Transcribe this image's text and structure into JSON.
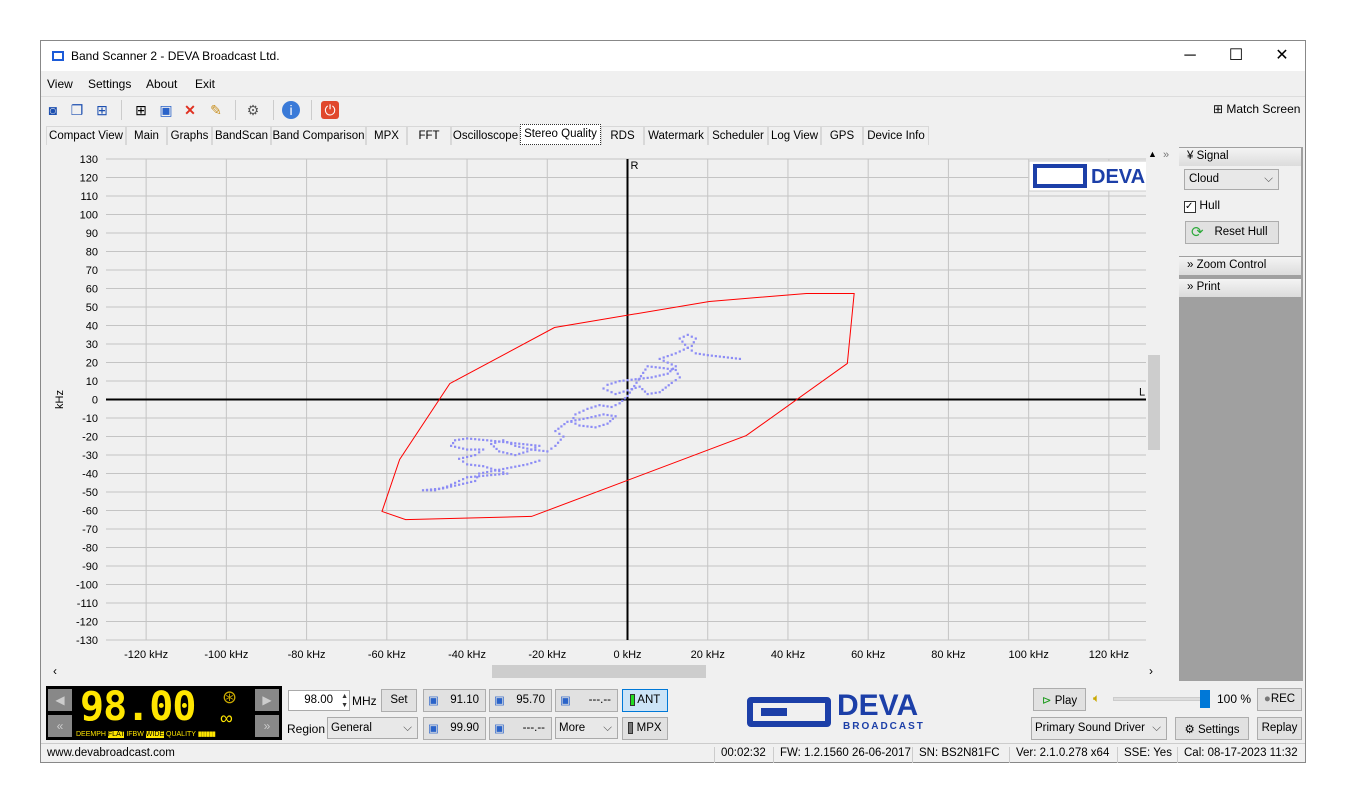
{
  "window": {
    "title": "Band Scanner 2 - DEVA Broadcast Ltd.",
    "minimize": "─",
    "maximize": "☐",
    "close": "✕"
  },
  "menu": [
    "View",
    "Settings",
    "About",
    "Exit"
  ],
  "toolbar": {
    "match_screen": "Match Screen",
    "icons": [
      "view-icon",
      "windows-icon",
      "grid-icon",
      "layout-icon",
      "save-icon",
      "delete-icon",
      "edit-icon",
      "gear-icon",
      "info-icon",
      "power-icon"
    ]
  },
  "tabs": [
    "Compact View",
    "Main",
    "Graphs",
    "BandScan",
    "Band Comparison",
    "MPX",
    "FFT",
    "Oscilloscope",
    "Stereo Quality",
    "RDS",
    "Watermark",
    "Scheduler",
    "Log View",
    "GPS",
    "Device Info"
  ],
  "active_tab": "Stereo Quality",
  "chart_data": {
    "type": "scatter",
    "xlabel": "",
    "ylabel": "kHz",
    "xlim": [
      -130,
      130
    ],
    "ylim": [
      -130,
      130
    ],
    "x_ticks": [
      "-120 kHz",
      "-100 kHz",
      "-80 kHz",
      "-60 kHz",
      "-40 kHz",
      "-20 kHz",
      "0 kHz",
      "20 kHz",
      "40 kHz",
      "60 kHz",
      "80 kHz",
      "100 kHz",
      "120 kHz"
    ],
    "y_ticks": [
      "130",
      "120",
      "110",
      "100",
      "90",
      "80",
      "70",
      "60",
      "50",
      "40",
      "30",
      "20",
      "10",
      "0",
      "-10",
      "-20",
      "-30",
      "-40",
      "-50",
      "-60",
      "-70",
      "-80",
      "-90",
      "-100",
      "-110",
      "-120",
      "-130"
    ],
    "axis_labels": {
      "r": "R",
      "l": "L"
    },
    "grid": true,
    "hull_color": "#ff0000",
    "cloud_color": "#8c8cf5",
    "hull": [
      [
        -61.2,
        -60.5
      ],
      [
        -55.3,
        -64.9
      ],
      [
        -23.9,
        -63.2
      ],
      [
        29.6,
        -19.5
      ],
      [
        54.8,
        19.5
      ],
      [
        56.5,
        57.3
      ],
      [
        44.6,
        57.3
      ],
      [
        20.4,
        53
      ],
      [
        -18.2,
        38.9
      ],
      [
        -44.3,
        8.6
      ],
      [
        -56.8,
        -32.4
      ]
    ],
    "cloud": [
      [
        28,
        22
      ],
      [
        24,
        23
      ],
      [
        20,
        24
      ],
      [
        17,
        25
      ],
      [
        15,
        28
      ],
      [
        13,
        33
      ],
      [
        15,
        35
      ],
      [
        17,
        33
      ],
      [
        16,
        29
      ],
      [
        12,
        25
      ],
      [
        8,
        22
      ],
      [
        10,
        20
      ],
      [
        12,
        18
      ],
      [
        10,
        14
      ],
      [
        6,
        12
      ],
      [
        2,
        11
      ],
      [
        -2,
        10
      ],
      [
        -5,
        8
      ],
      [
        -6,
        6
      ],
      [
        -3,
        3
      ],
      [
        0,
        5
      ],
      [
        3,
        7
      ],
      [
        5,
        3
      ],
      [
        8,
        4
      ],
      [
        11,
        9
      ],
      [
        13,
        12
      ],
      [
        12,
        16
      ],
      [
        9,
        17
      ],
      [
        5,
        18
      ],
      [
        0,
        2
      ],
      [
        -2,
        -2
      ],
      [
        -4,
        -4
      ],
      [
        -7,
        -3
      ],
      [
        -10,
        -5
      ],
      [
        -13,
        -8
      ],
      [
        -14,
        -12
      ],
      [
        -12,
        -14
      ],
      [
        -8,
        -15
      ],
      [
        -5,
        -13
      ],
      [
        -3,
        -9
      ],
      [
        -6,
        -8
      ],
      [
        -10,
        -10
      ],
      [
        -15,
        -12
      ],
      [
        -18,
        -17
      ],
      [
        -16,
        -20
      ],
      [
        -18,
        -25
      ],
      [
        -20,
        -28
      ],
      [
        -24,
        -27
      ],
      [
        -28,
        -25
      ],
      [
        -31,
        -22
      ],
      [
        -34,
        -24
      ],
      [
        -32,
        -28
      ],
      [
        -28,
        -30
      ],
      [
        -25,
        -28
      ],
      [
        -22,
        -25
      ],
      [
        -35,
        -22
      ],
      [
        -40,
        -21
      ],
      [
        -43,
        -22
      ],
      [
        -44,
        -25
      ],
      [
        -40,
        -27
      ],
      [
        -36,
        -27
      ],
      [
        -38,
        -30
      ],
      [
        -42,
        -32
      ],
      [
        -40,
        -35
      ],
      [
        -36,
        -36
      ],
      [
        -33,
        -38
      ],
      [
        -30,
        -40
      ],
      [
        -35,
        -41
      ],
      [
        -40,
        -42
      ],
      [
        -43,
        -45
      ],
      [
        -45,
        -47
      ],
      [
        -48,
        -49
      ],
      [
        -51,
        -49
      ],
      [
        -46,
        -48
      ],
      [
        -42,
        -46
      ],
      [
        -38,
        -44
      ],
      [
        -37,
        -40
      ],
      [
        -25,
        -35
      ],
      [
        -22,
        -33
      ]
    ]
  },
  "logo": {
    "name": "DEVA",
    "sub": "BROADCAST"
  },
  "right_panel": {
    "signal": "Signal",
    "mode": "Cloud",
    "hull_label": "Hull",
    "hull_checked": true,
    "reset_hull": "Reset Hull",
    "zoom_control": "Zoom Control",
    "print": "Print"
  },
  "tuner": {
    "display": "98.00",
    "freq": "98.00",
    "unit": "MHz",
    "set": "Set",
    "region_label": "Region",
    "region": "General",
    "presets": [
      "91.10",
      "95.70",
      "---.--",
      "99.90",
      "---.--"
    ],
    "more": "More",
    "ant": "ANT",
    "mpx": "MPX",
    "indicators": [
      "DEEMPH",
      "FLAT",
      "IFBW",
      "WIDE",
      "QUALITY"
    ]
  },
  "audio": {
    "play": "Play",
    "volume": "100 %",
    "volume_level": 100,
    "rec": "REC",
    "driver": "Primary Sound Driver",
    "settings": "Settings",
    "replay": "Replay"
  },
  "status": {
    "website": "www.devabroadcast.com",
    "time": "00:02:32",
    "fw": "FW: 1.2.1560  26-06-2017",
    "sn": "SN: BS2N81FC",
    "ver": "Ver: 2.1.0.278 x64",
    "sse": "SSE: Yes",
    "cal": "Cal: 08-17-2023 11:32"
  }
}
